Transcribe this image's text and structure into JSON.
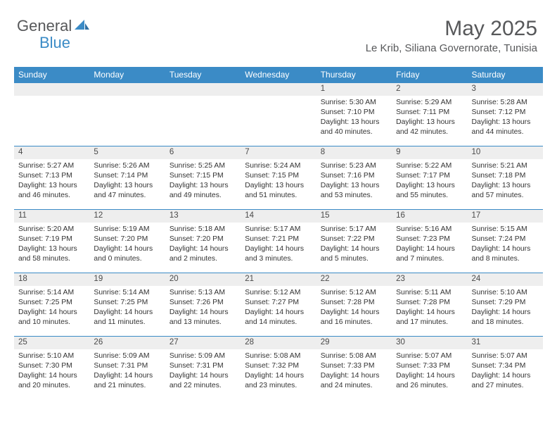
{
  "logo": {
    "text1": "General",
    "text2": "Blue"
  },
  "title": "May 2025",
  "location": "Le Krib, Siliana Governorate, Tunisia",
  "colors": {
    "header_blue": "#3b8bc6",
    "logo_gray": "#57585a",
    "daynum_bg": "#eeeeee",
    "text": "#333333",
    "white": "#ffffff"
  },
  "dayHeaders": [
    "Sunday",
    "Monday",
    "Tuesday",
    "Wednesday",
    "Thursday",
    "Friday",
    "Saturday"
  ],
  "weeks": [
    [
      null,
      null,
      null,
      null,
      {
        "n": "1",
        "sr": "Sunrise: 5:30 AM",
        "ss": "Sunset: 7:10 PM",
        "d1": "Daylight: 13 hours",
        "d2": "and 40 minutes."
      },
      {
        "n": "2",
        "sr": "Sunrise: 5:29 AM",
        "ss": "Sunset: 7:11 PM",
        "d1": "Daylight: 13 hours",
        "d2": "and 42 minutes."
      },
      {
        "n": "3",
        "sr": "Sunrise: 5:28 AM",
        "ss": "Sunset: 7:12 PM",
        "d1": "Daylight: 13 hours",
        "d2": "and 44 minutes."
      }
    ],
    [
      {
        "n": "4",
        "sr": "Sunrise: 5:27 AM",
        "ss": "Sunset: 7:13 PM",
        "d1": "Daylight: 13 hours",
        "d2": "and 46 minutes."
      },
      {
        "n": "5",
        "sr": "Sunrise: 5:26 AM",
        "ss": "Sunset: 7:14 PM",
        "d1": "Daylight: 13 hours",
        "d2": "and 47 minutes."
      },
      {
        "n": "6",
        "sr": "Sunrise: 5:25 AM",
        "ss": "Sunset: 7:15 PM",
        "d1": "Daylight: 13 hours",
        "d2": "and 49 minutes."
      },
      {
        "n": "7",
        "sr": "Sunrise: 5:24 AM",
        "ss": "Sunset: 7:15 PM",
        "d1": "Daylight: 13 hours",
        "d2": "and 51 minutes."
      },
      {
        "n": "8",
        "sr": "Sunrise: 5:23 AM",
        "ss": "Sunset: 7:16 PM",
        "d1": "Daylight: 13 hours",
        "d2": "and 53 minutes."
      },
      {
        "n": "9",
        "sr": "Sunrise: 5:22 AM",
        "ss": "Sunset: 7:17 PM",
        "d1": "Daylight: 13 hours",
        "d2": "and 55 minutes."
      },
      {
        "n": "10",
        "sr": "Sunrise: 5:21 AM",
        "ss": "Sunset: 7:18 PM",
        "d1": "Daylight: 13 hours",
        "d2": "and 57 minutes."
      }
    ],
    [
      {
        "n": "11",
        "sr": "Sunrise: 5:20 AM",
        "ss": "Sunset: 7:19 PM",
        "d1": "Daylight: 13 hours",
        "d2": "and 58 minutes."
      },
      {
        "n": "12",
        "sr": "Sunrise: 5:19 AM",
        "ss": "Sunset: 7:20 PM",
        "d1": "Daylight: 14 hours",
        "d2": "and 0 minutes."
      },
      {
        "n": "13",
        "sr": "Sunrise: 5:18 AM",
        "ss": "Sunset: 7:20 PM",
        "d1": "Daylight: 14 hours",
        "d2": "and 2 minutes."
      },
      {
        "n": "14",
        "sr": "Sunrise: 5:17 AM",
        "ss": "Sunset: 7:21 PM",
        "d1": "Daylight: 14 hours",
        "d2": "and 3 minutes."
      },
      {
        "n": "15",
        "sr": "Sunrise: 5:17 AM",
        "ss": "Sunset: 7:22 PM",
        "d1": "Daylight: 14 hours",
        "d2": "and 5 minutes."
      },
      {
        "n": "16",
        "sr": "Sunrise: 5:16 AM",
        "ss": "Sunset: 7:23 PM",
        "d1": "Daylight: 14 hours",
        "d2": "and 7 minutes."
      },
      {
        "n": "17",
        "sr": "Sunrise: 5:15 AM",
        "ss": "Sunset: 7:24 PM",
        "d1": "Daylight: 14 hours",
        "d2": "and 8 minutes."
      }
    ],
    [
      {
        "n": "18",
        "sr": "Sunrise: 5:14 AM",
        "ss": "Sunset: 7:25 PM",
        "d1": "Daylight: 14 hours",
        "d2": "and 10 minutes."
      },
      {
        "n": "19",
        "sr": "Sunrise: 5:14 AM",
        "ss": "Sunset: 7:25 PM",
        "d1": "Daylight: 14 hours",
        "d2": "and 11 minutes."
      },
      {
        "n": "20",
        "sr": "Sunrise: 5:13 AM",
        "ss": "Sunset: 7:26 PM",
        "d1": "Daylight: 14 hours",
        "d2": "and 13 minutes."
      },
      {
        "n": "21",
        "sr": "Sunrise: 5:12 AM",
        "ss": "Sunset: 7:27 PM",
        "d1": "Daylight: 14 hours",
        "d2": "and 14 minutes."
      },
      {
        "n": "22",
        "sr": "Sunrise: 5:12 AM",
        "ss": "Sunset: 7:28 PM",
        "d1": "Daylight: 14 hours",
        "d2": "and 16 minutes."
      },
      {
        "n": "23",
        "sr": "Sunrise: 5:11 AM",
        "ss": "Sunset: 7:28 PM",
        "d1": "Daylight: 14 hours",
        "d2": "and 17 minutes."
      },
      {
        "n": "24",
        "sr": "Sunrise: 5:10 AM",
        "ss": "Sunset: 7:29 PM",
        "d1": "Daylight: 14 hours",
        "d2": "and 18 minutes."
      }
    ],
    [
      {
        "n": "25",
        "sr": "Sunrise: 5:10 AM",
        "ss": "Sunset: 7:30 PM",
        "d1": "Daylight: 14 hours",
        "d2": "and 20 minutes."
      },
      {
        "n": "26",
        "sr": "Sunrise: 5:09 AM",
        "ss": "Sunset: 7:31 PM",
        "d1": "Daylight: 14 hours",
        "d2": "and 21 minutes."
      },
      {
        "n": "27",
        "sr": "Sunrise: 5:09 AM",
        "ss": "Sunset: 7:31 PM",
        "d1": "Daylight: 14 hours",
        "d2": "and 22 minutes."
      },
      {
        "n": "28",
        "sr": "Sunrise: 5:08 AM",
        "ss": "Sunset: 7:32 PM",
        "d1": "Daylight: 14 hours",
        "d2": "and 23 minutes."
      },
      {
        "n": "29",
        "sr": "Sunrise: 5:08 AM",
        "ss": "Sunset: 7:33 PM",
        "d1": "Daylight: 14 hours",
        "d2": "and 24 minutes."
      },
      {
        "n": "30",
        "sr": "Sunrise: 5:07 AM",
        "ss": "Sunset: 7:33 PM",
        "d1": "Daylight: 14 hours",
        "d2": "and 26 minutes."
      },
      {
        "n": "31",
        "sr": "Sunrise: 5:07 AM",
        "ss": "Sunset: 7:34 PM",
        "d1": "Daylight: 14 hours",
        "d2": "and 27 minutes."
      }
    ]
  ]
}
